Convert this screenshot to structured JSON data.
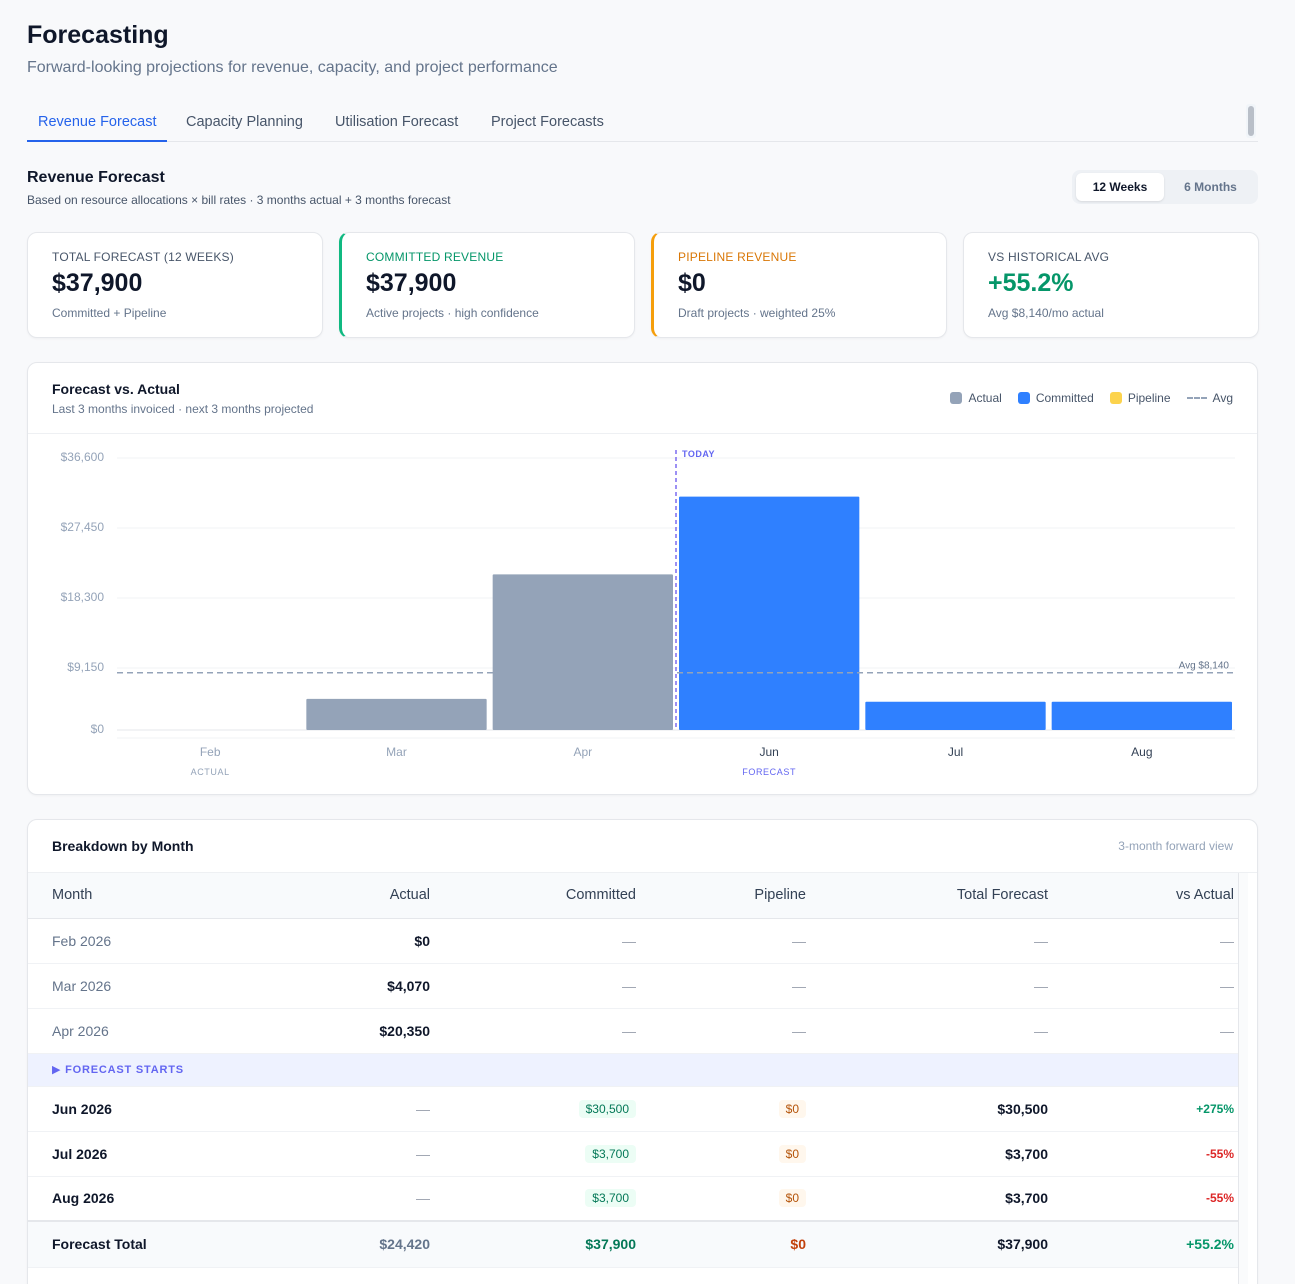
{
  "page": {
    "title": "Forecasting",
    "subtitle": "Forward-looking projections for revenue, capacity, and project performance"
  },
  "tabs": [
    {
      "label": "Revenue Forecast",
      "active": true
    },
    {
      "label": "Capacity Planning",
      "active": false
    },
    {
      "label": "Utilisation Forecast",
      "active": false
    },
    {
      "label": "Project Forecasts",
      "active": false
    }
  ],
  "section": {
    "title": "Revenue Forecast",
    "subtitle": "Based on resource allocations × bill rates · 3 months actual + 3 months forecast",
    "range_options": [
      {
        "label": "12 Weeks",
        "active": true
      },
      {
        "label": "6 Months",
        "active": false
      }
    ]
  },
  "kpis": [
    {
      "label": "Total Forecast (12 Weeks)",
      "value": "$37,900",
      "note": "Committed + Pipeline",
      "value_color": "#0f172a",
      "label_color": "#475569"
    },
    {
      "label": "Committed Revenue",
      "value": "$37,900",
      "note": "Active projects · high confidence",
      "value_color": "#0f172a",
      "label_color": "#059669"
    },
    {
      "label": "Pipeline Revenue",
      "value": "$0",
      "note": "Draft projects · weighted 25%",
      "value_color": "#0f172a",
      "label_color": "#d97706"
    },
    {
      "label": "VS Historical Avg",
      "value": "+55.2%",
      "note": "Avg $8,140/mo actual",
      "value_color": "#059669",
      "label_color": "#475569"
    }
  ],
  "chart_card": {
    "title": "Forecast vs. Actual",
    "subtitle": "Last 3 months invoiced · next 3 months projected",
    "legend": [
      {
        "label": "Actual",
        "color": "#94a3b8",
        "kind": "swatch"
      },
      {
        "label": "Committed",
        "color": "#2f80ff",
        "kind": "swatch"
      },
      {
        "label": "Pipeline",
        "color": "#fcd34d",
        "kind": "swatch"
      },
      {
        "label": "Avg",
        "color": "#94a3b8",
        "kind": "dash"
      }
    ]
  },
  "chart_data": {
    "type": "bar",
    "categories": [
      "Feb",
      "Mar",
      "Apr",
      "Jun",
      "Jul",
      "Aug"
    ],
    "series": [
      {
        "name": "Actual",
        "values": [
          0,
          4070,
          20350,
          null,
          null,
          null
        ],
        "color": "#94a3b8"
      },
      {
        "name": "Committed",
        "values": [
          null,
          null,
          null,
          30500,
          3700,
          3700
        ],
        "color": "#2f80ff"
      },
      {
        "name": "Pipeline",
        "values": [
          null,
          null,
          null,
          0,
          0,
          0
        ],
        "color": "#fcd34d"
      }
    ],
    "y_ticks": [
      "$36,600",
      "$27,450",
      "$18,300",
      "$9,150",
      "$0"
    ],
    "y_tick_values": [
      36600,
      27450,
      18300,
      9150,
      0
    ],
    "ylim": [
      0,
      36600
    ],
    "avg": 8140,
    "avg_label": "Avg $8,140",
    "today_label": "TODAY",
    "today_after_index": 2,
    "group_labels": {
      "actual": "ACTUAL",
      "forecast": "FORECAST"
    },
    "grid": true
  },
  "breakdown": {
    "title": "Breakdown by Month",
    "note": "3-month forward view",
    "columns": [
      "Month",
      "Actual",
      "Committed",
      "Pipeline",
      "Total Forecast",
      "vs Actual"
    ],
    "actual_rows": [
      {
        "month": "Feb 2026",
        "actual": "$0",
        "committed": "—",
        "pipeline": "—",
        "total": "—",
        "vs": "—"
      },
      {
        "month": "Mar 2026",
        "actual": "$4,070",
        "committed": "—",
        "pipeline": "—",
        "total": "—",
        "vs": "—"
      },
      {
        "month": "Apr 2026",
        "actual": "$20,350",
        "committed": "—",
        "pipeline": "—",
        "total": "—",
        "vs": "—"
      }
    ],
    "forecast_marker": "▶ FORECAST STARTS",
    "forecast_rows": [
      {
        "month": "Jun 2026",
        "actual": "—",
        "committed": "$30,500",
        "pipeline": "$0",
        "total": "$30,500",
        "vs": "+275%",
        "vs_sign": "pos"
      },
      {
        "month": "Jul 2026",
        "actual": "—",
        "committed": "$3,700",
        "pipeline": "$0",
        "total": "$3,700",
        "vs": "-55%",
        "vs_sign": "neg"
      },
      {
        "month": "Aug 2026",
        "actual": "—",
        "committed": "$3,700",
        "pipeline": "$0",
        "total": "$3,700",
        "vs": "-55%",
        "vs_sign": "neg"
      }
    ],
    "total_row": {
      "label": "Forecast Total",
      "actual": "$24,420",
      "committed": "$37,900",
      "pipeline": "$0",
      "total": "$37,900",
      "vs": "+55.2%"
    }
  }
}
